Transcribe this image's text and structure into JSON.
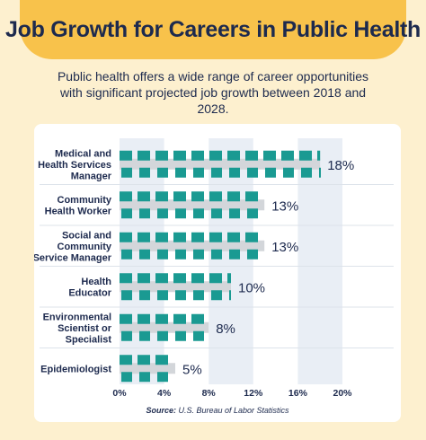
{
  "title": "Job Growth for Careers in Public Health",
  "subtitle": "Public health offers a wide range of career opportunities with significant projected job growth between 2018 and 2028.",
  "source_label": "Source:",
  "source_text": "U.S. Bureau of Labor Statistics",
  "colors": {
    "bar_teal": "#1a9a92",
    "bar_gray": "#d3d6da",
    "band": "#e9eef5",
    "navy": "#1d2a4e",
    "header": "#f8c24b",
    "background": "#fdf0cf"
  },
  "chart_data": {
    "type": "bar",
    "orientation": "horizontal",
    "categories": [
      [
        "Medical and",
        "Health Services",
        "Manager"
      ],
      [
        "Community",
        "Health Worker"
      ],
      [
        "Social and",
        "Community",
        "Service Manager"
      ],
      [
        "Health",
        "Educator"
      ],
      [
        "Environmental",
        "Scientist or",
        "Specialist"
      ],
      [
        "Epidemiologist"
      ]
    ],
    "values": [
      18,
      13,
      13,
      10,
      8,
      5
    ],
    "value_labels": [
      "18%",
      "13%",
      "13%",
      "10%",
      "8%",
      "5%"
    ],
    "xlim": [
      0,
      20
    ],
    "xticks": [
      0,
      4,
      8,
      12,
      16,
      20
    ],
    "xtick_labels": [
      "0%",
      "4%",
      "8%",
      "12%",
      "16%",
      "20%"
    ],
    "grid": false,
    "legend": "none"
  }
}
